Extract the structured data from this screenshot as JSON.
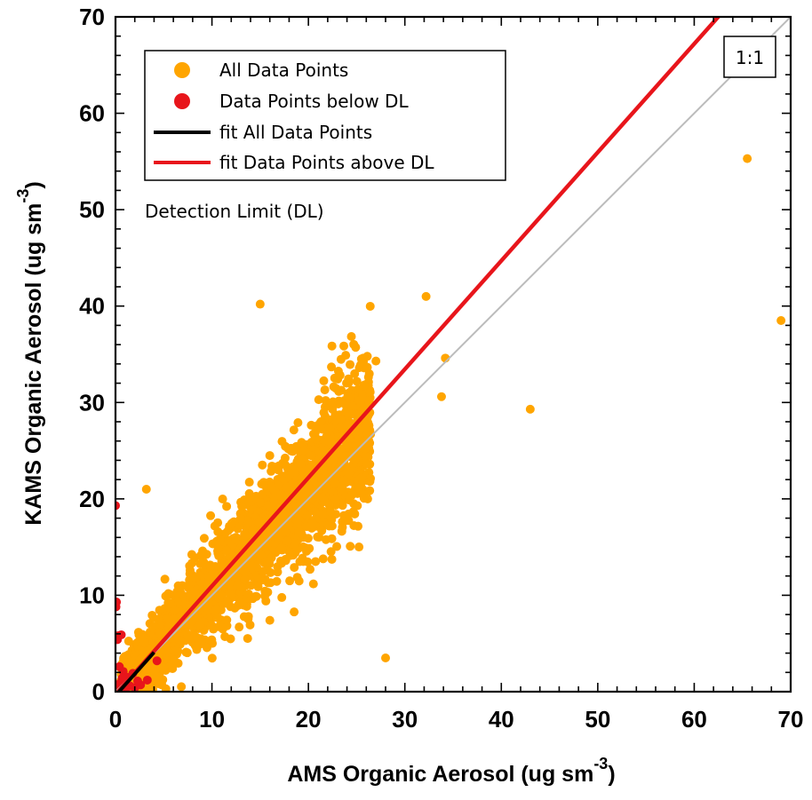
{
  "chart_data": {
    "type": "scatter",
    "xlabel": "AMS Organic Aerosol (ug sm",
    "xlabel_sup": "-3",
    "xlabel_end": ")",
    "ylabel": "KAMS Organic Aerosol (ug sm",
    "ylabel_sup": "-3",
    "ylabel_end": ")",
    "xlim": [
      0,
      70
    ],
    "ylim": [
      0,
      70
    ],
    "xticks": [
      0,
      10,
      20,
      30,
      40,
      50,
      60,
      70
    ],
    "yticks": [
      0,
      10,
      20,
      30,
      40,
      50,
      60,
      70
    ],
    "grid": false,
    "legend_position": "top-left",
    "annotations": {
      "detection_limit": "Detection Limit (DL)",
      "one_to_one": "1:1"
    },
    "colors": {
      "all_points": "#FFA500",
      "below_dl": "#E8151B",
      "fit_all": "#000000",
      "fit_above_dl": "#E8151B",
      "one_to_one": "#BBBBBB"
    },
    "series": [
      {
        "name": "All Data Points",
        "kind": "scatter",
        "cluster": {
          "x_range": [
            0.5,
            30
          ],
          "slope": 1.06,
          "spread": 2.6
        },
        "outliers": [
          [
            65.5,
            55.3
          ],
          [
            69,
            38.5
          ],
          [
            15,
            40.2
          ],
          [
            32.2,
            41
          ],
          [
            43,
            29.3
          ],
          [
            28,
            3.5
          ],
          [
            34.2,
            34.6
          ],
          [
            3.2,
            21
          ],
          [
            27,
            34.3
          ],
          [
            33.8,
            30.6
          ]
        ]
      },
      {
        "name": "Data Points below DL",
        "kind": "scatter",
        "points": [
          [
            0,
            19.3
          ],
          [
            0.1,
            9.3
          ],
          [
            0.05,
            8.8
          ],
          [
            0.3,
            5.8
          ],
          [
            0.6,
            5.9
          ],
          [
            0.2,
            5.4
          ],
          [
            0.4,
            2.6
          ],
          [
            0.8,
            2.1
          ],
          [
            1.2,
            1.5
          ],
          [
            0.5,
            0.9
          ],
          [
            1.5,
            0.6
          ],
          [
            2.0,
            0.4
          ],
          [
            0.2,
            0.3
          ],
          [
            2.6,
            0.7
          ],
          [
            4.3,
            3.2
          ],
          [
            3.3,
            1.2
          ],
          [
            1.0,
            0.2
          ],
          [
            0.7,
            1.4
          ],
          [
            1.8,
            1.9
          ],
          [
            0.1,
            0.7
          ],
          [
            2.3,
            1.1
          ],
          [
            0.9,
            0.5
          ]
        ]
      },
      {
        "name": "fit All Data Points",
        "kind": "line",
        "slope": 1.12,
        "intercept": -0.4,
        "x_range": [
          0,
          4
        ]
      },
      {
        "name": "fit Data Points above DL",
        "kind": "line",
        "slope": 1.125,
        "intercept": -0.3,
        "x_range": [
          0,
          70
        ]
      },
      {
        "name": "1:1",
        "kind": "line",
        "slope": 1.0,
        "intercept": 0,
        "x_range": [
          0,
          70
        ]
      }
    ]
  }
}
